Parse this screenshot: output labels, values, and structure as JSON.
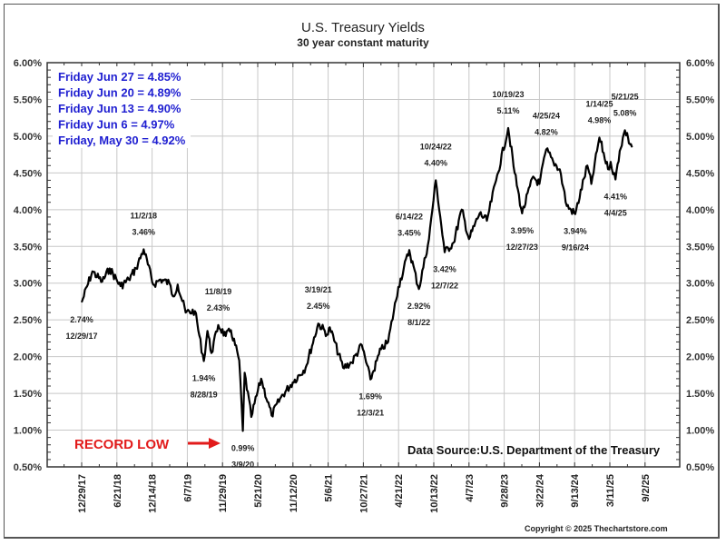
{
  "chart_data": {
    "type": "line",
    "title": "U.S. Treasury Yields",
    "subtitle": "30 year constant maturity",
    "xlabel": "",
    "ylabel": "",
    "ylim": [
      0.5,
      6.0
    ],
    "y_ticks": [
      "0.50%",
      "1.00%",
      "1.50%",
      "2.00%",
      "2.50%",
      "3.00%",
      "3.50%",
      "4.00%",
      "4.50%",
      "5.00%",
      "5.50%",
      "6.00%"
    ],
    "y_tick_values": [
      0.5,
      1.0,
      1.5,
      2.0,
      2.5,
      3.0,
      3.5,
      4.0,
      4.5,
      5.0,
      5.5,
      6.0
    ],
    "x_ticks": [
      "12/29/17",
      "6/21/18",
      "12/14/18",
      "6/7/19",
      "11/29/19",
      "5/21/20",
      "11/12/20",
      "5/6/21",
      "10/27/21",
      "4/21/22",
      "10/13/22",
      "4/7/23",
      "9/28/23",
      "3/22/24",
      "9/13/24",
      "3/11/25",
      "9/2/25"
    ],
    "grid": true,
    "series": [
      {
        "name": "30 year yield",
        "color": "#000000",
        "points": [
          {
            "x": "2017-12-29",
            "y": 2.74
          },
          {
            "x": "2018-02-20",
            "y": 3.16
          },
          {
            "x": "2018-04-10",
            "y": 3.02
          },
          {
            "x": "2018-05-17",
            "y": 3.2
          },
          {
            "x": "2018-07-10",
            "y": 2.96
          },
          {
            "x": "2018-08-20",
            "y": 3.05
          },
          {
            "x": "2018-09-25",
            "y": 3.2
          },
          {
            "x": "2018-11-02",
            "y": 3.46
          },
          {
            "x": "2018-12-20",
            "y": 2.98
          },
          {
            "x": "2019-01-25",
            "y": 3.05
          },
          {
            "x": "2019-03-10",
            "y": 3.0
          },
          {
            "x": "2019-03-28",
            "y": 2.82
          },
          {
            "x": "2019-04-20",
            "y": 2.98
          },
          {
            "x": "2019-05-30",
            "y": 2.6
          },
          {
            "x": "2019-07-15",
            "y": 2.62
          },
          {
            "x": "2019-08-28",
            "y": 1.94
          },
          {
            "x": "2019-09-15",
            "y": 2.35
          },
          {
            "x": "2019-10-05",
            "y": 2.05
          },
          {
            "x": "2019-11-08",
            "y": 2.43
          },
          {
            "x": "2019-12-15",
            "y": 2.28
          },
          {
            "x": "2020-01-10",
            "y": 2.36
          },
          {
            "x": "2020-02-20",
            "y": 1.95
          },
          {
            "x": "2020-03-09",
            "y": 0.99
          },
          {
            "x": "2020-03-18",
            "y": 1.78
          },
          {
            "x": "2020-04-20",
            "y": 1.18
          },
          {
            "x": "2020-06-08",
            "y": 1.7
          },
          {
            "x": "2020-07-30",
            "y": 1.2
          },
          {
            "x": "2020-09-15",
            "y": 1.45
          },
          {
            "x": "2020-11-12",
            "y": 1.65
          },
          {
            "x": "2021-01-15",
            "y": 1.85
          },
          {
            "x": "2021-03-19",
            "y": 2.45
          },
          {
            "x": "2021-05-06",
            "y": 2.3
          },
          {
            "x": "2021-05-15",
            "y": 2.4
          },
          {
            "x": "2021-07-20",
            "y": 1.85
          },
          {
            "x": "2021-09-01",
            "y": 1.92
          },
          {
            "x": "2021-10-21",
            "y": 2.16
          },
          {
            "x": "2021-12-03",
            "y": 1.69
          },
          {
            "x": "2022-01-25",
            "y": 2.1
          },
          {
            "x": "2022-03-01",
            "y": 2.2
          },
          {
            "x": "2022-04-21",
            "y": 2.95
          },
          {
            "x": "2022-06-14",
            "y": 3.45
          },
          {
            "x": "2022-08-01",
            "y": 2.92
          },
          {
            "x": "2022-09-20",
            "y": 3.6
          },
          {
            "x": "2022-10-24",
            "y": 4.4
          },
          {
            "x": "2022-12-07",
            "y": 3.42
          },
          {
            "x": "2023-01-20",
            "y": 3.55
          },
          {
            "x": "2023-03-02",
            "y": 4.0
          },
          {
            "x": "2023-04-07",
            "y": 3.6
          },
          {
            "x": "2023-05-30",
            "y": 3.95
          },
          {
            "x": "2023-07-05",
            "y": 3.85
          },
          {
            "x": "2023-08-20",
            "y": 4.4
          },
          {
            "x": "2023-10-19",
            "y": 5.11
          },
          {
            "x": "2023-11-20",
            "y": 4.5
          },
          {
            "x": "2023-12-27",
            "y": 3.95
          },
          {
            "x": "2024-02-20",
            "y": 4.45
          },
          {
            "x": "2024-03-22",
            "y": 4.35
          },
          {
            "x": "2024-04-25",
            "y": 4.82
          },
          {
            "x": "2024-05-30",
            "y": 4.65
          },
          {
            "x": "2024-07-01",
            "y": 4.55
          },
          {
            "x": "2024-08-05",
            "y": 4.05
          },
          {
            "x": "2024-09-16",
            "y": 3.94
          },
          {
            "x": "2024-11-15",
            "y": 4.6
          },
          {
            "x": "2024-12-05",
            "y": 4.35
          },
          {
            "x": "2025-01-14",
            "y": 4.98
          },
          {
            "x": "2025-02-26",
            "y": 4.55
          },
          {
            "x": "2025-03-11",
            "y": 4.65
          },
          {
            "x": "2025-04-04",
            "y": 4.41
          },
          {
            "x": "2025-04-25",
            "y": 4.8
          },
          {
            "x": "2025-05-21",
            "y": 5.08
          },
          {
            "x": "2025-06-06",
            "y": 4.97
          },
          {
            "x": "2025-06-13",
            "y": 4.9
          },
          {
            "x": "2025-06-20",
            "y": 4.89
          },
          {
            "x": "2025-06-27",
            "y": 4.85
          }
        ]
      }
    ],
    "annotations": [
      {
        "date": "12/29/17",
        "value": "2.74%",
        "x": "2017-12-29",
        "y": 2.74,
        "pos": "below",
        "order": "value-first"
      },
      {
        "date": "11/2/18",
        "value": "3.46%",
        "x": "2018-11-02",
        "y": 3.46,
        "pos": "above",
        "order": "date-first"
      },
      {
        "date": "8/28/19",
        "value": "1.94%",
        "x": "2019-08-28",
        "y": 1.94,
        "pos": "below",
        "order": "value-first"
      },
      {
        "date": "11/8/19",
        "value": "2.43%",
        "x": "2019-11-08",
        "y": 2.43,
        "pos": "above",
        "order": "date-first"
      },
      {
        "date": "3/9/20",
        "value": "0.99%",
        "x": "2020-03-09",
        "y": 0.99,
        "pos": "below",
        "order": "value-first"
      },
      {
        "date": "3/19/21",
        "value": "2.45%",
        "x": "2021-03-19",
        "y": 2.45,
        "pos": "above",
        "order": "date-first"
      },
      {
        "date": "12/3/21",
        "value": "1.69%",
        "x": "2021-12-03",
        "y": 1.69,
        "pos": "below",
        "order": "value-first"
      },
      {
        "date": "6/14/22",
        "value": "3.45%",
        "x": "2022-06-14",
        "y": 3.45,
        "pos": "above",
        "order": "date-first"
      },
      {
        "date": "8/1/22",
        "value": "2.92%",
        "x": "2022-08-01",
        "y": 2.92,
        "pos": "below",
        "order": "value-first"
      },
      {
        "date": "10/24/22",
        "value": "4.40%",
        "x": "2022-10-24",
        "y": 4.4,
        "pos": "above",
        "order": "date-first"
      },
      {
        "date": "12/7/22",
        "value": "3.42%",
        "x": "2022-12-07",
        "y": 3.42,
        "pos": "below",
        "order": "value-first"
      },
      {
        "date": "10/19/23",
        "value": "5.11%",
        "x": "2023-10-19",
        "y": 5.11,
        "pos": "above",
        "order": "date-first"
      },
      {
        "date": "12/27/23",
        "value": "3.95%",
        "x": "2023-12-27",
        "y": 3.95,
        "pos": "below",
        "order": "value-first"
      },
      {
        "date": "4/25/24",
        "value": "4.82%",
        "x": "2024-04-25",
        "y": 4.82,
        "pos": "above",
        "order": "date-first"
      },
      {
        "date": "9/16/24",
        "value": "3.94%",
        "x": "2024-09-16",
        "y": 3.94,
        "pos": "below",
        "order": "value-first"
      },
      {
        "date": "1/14/25",
        "value": "4.98%",
        "x": "2025-01-14",
        "y": 4.98,
        "pos": "above",
        "order": "date-first"
      },
      {
        "date": "4/4/25",
        "value": "4.41%",
        "x": "2025-04-04",
        "y": 4.41,
        "pos": "below",
        "order": "value-first"
      },
      {
        "date": "5/21/25",
        "value": "5.08%",
        "x": "2025-05-21",
        "y": 5.08,
        "pos": "above",
        "order": "date-first"
      }
    ],
    "legend": {
      "placement": "top-left",
      "lines": [
        "Friday Jun 27 = 4.85%",
        "Friday Jun 20 = 4.89%",
        "Friday Jun 13 = 4.90%",
        "Friday Jun 6 = 4.97%",
        "Friday, May 30 = 4.92%"
      ],
      "color": "#1f1fd1"
    },
    "record_low": {
      "label": "RECORD LOW",
      "color": "#e21b1b"
    },
    "data_source": "Data Source:U.S. Department of the Treasury",
    "copyright": "Copyright © 2025 Thechartstore.com"
  }
}
